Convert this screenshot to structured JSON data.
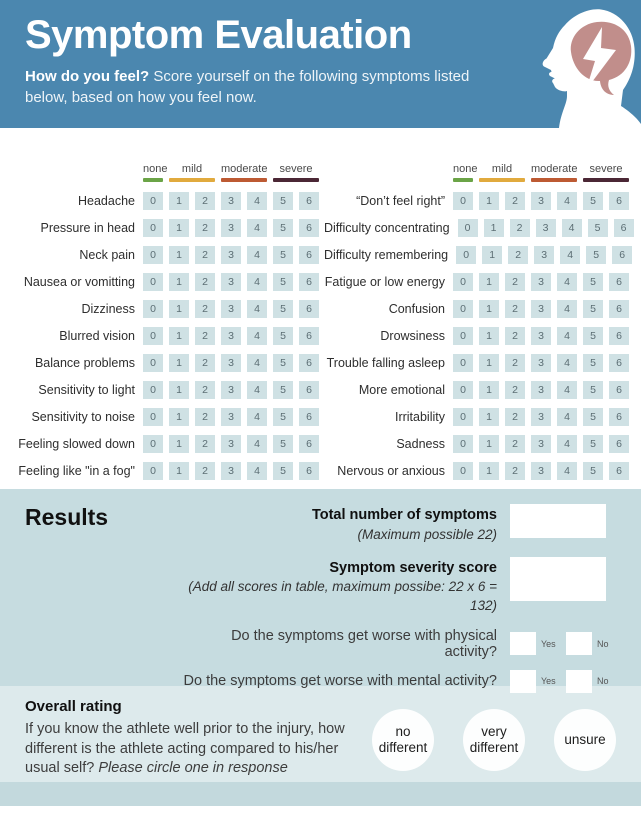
{
  "header": {
    "title": "Symptom Evaluation",
    "subtitle_bold": "How do you feel?",
    "subtitle_rest": " Score yourself on the following symptoms listed below, based on how you feel now.",
    "colors": {
      "header_bg": "#4b87af",
      "brain": "#c18e8b"
    }
  },
  "scale": {
    "levels": [
      {
        "label": "none",
        "color": "#6ba447",
        "span": 1
      },
      {
        "label": "mild",
        "color": "#e1aa3e",
        "span": 2
      },
      {
        "label": "moderate",
        "color": "#bd5a33",
        "span": 2
      },
      {
        "label": "severe",
        "color": "#4b2735",
        "span": 2
      }
    ],
    "values": [
      "0",
      "1",
      "2",
      "3",
      "4",
      "5",
      "6"
    ]
  },
  "symptoms_left": [
    "Headache",
    "Pressure in head",
    "Neck pain",
    "Nausea or vomitting",
    "Dizziness",
    "Blurred vision",
    "Balance problems",
    "Sensitivity to light",
    "Sensitivity to noise",
    "Feeling slowed down",
    "Feeling like \"in a fog\""
  ],
  "symptoms_right": [
    "“Don’t feel right”",
    "Difficulty concentrating",
    "Difficulty remembering",
    "Fatigue or low energy",
    "Confusion",
    "Drowsiness",
    "Trouble falling asleep",
    "More emotional",
    "Irritability",
    "Sadness",
    "Nervous or anxious"
  ],
  "results": {
    "heading": "Results",
    "total_label": "Total number of symptoms",
    "total_note": "(Maximum possible 22)",
    "severity_label": "Symptom severity score",
    "severity_note": "(Add all scores in table, maximum possibe: 22 x 6 = 132)",
    "questions": [
      {
        "text": "Do the symptoms get worse with physical activity?",
        "yes": "Yes",
        "no": "No"
      },
      {
        "text": "Do the symptoms get worse with mental activity?",
        "yes": "Yes",
        "no": "No"
      }
    ]
  },
  "overall": {
    "heading": "Overall rating",
    "body": "If you know the athlete well prior to the injury, how different is the athlete acting compared to his/her usual self?",
    "body_italic": "Please circle one in response",
    "options": [
      "no different",
      "very different",
      "unsure"
    ]
  }
}
